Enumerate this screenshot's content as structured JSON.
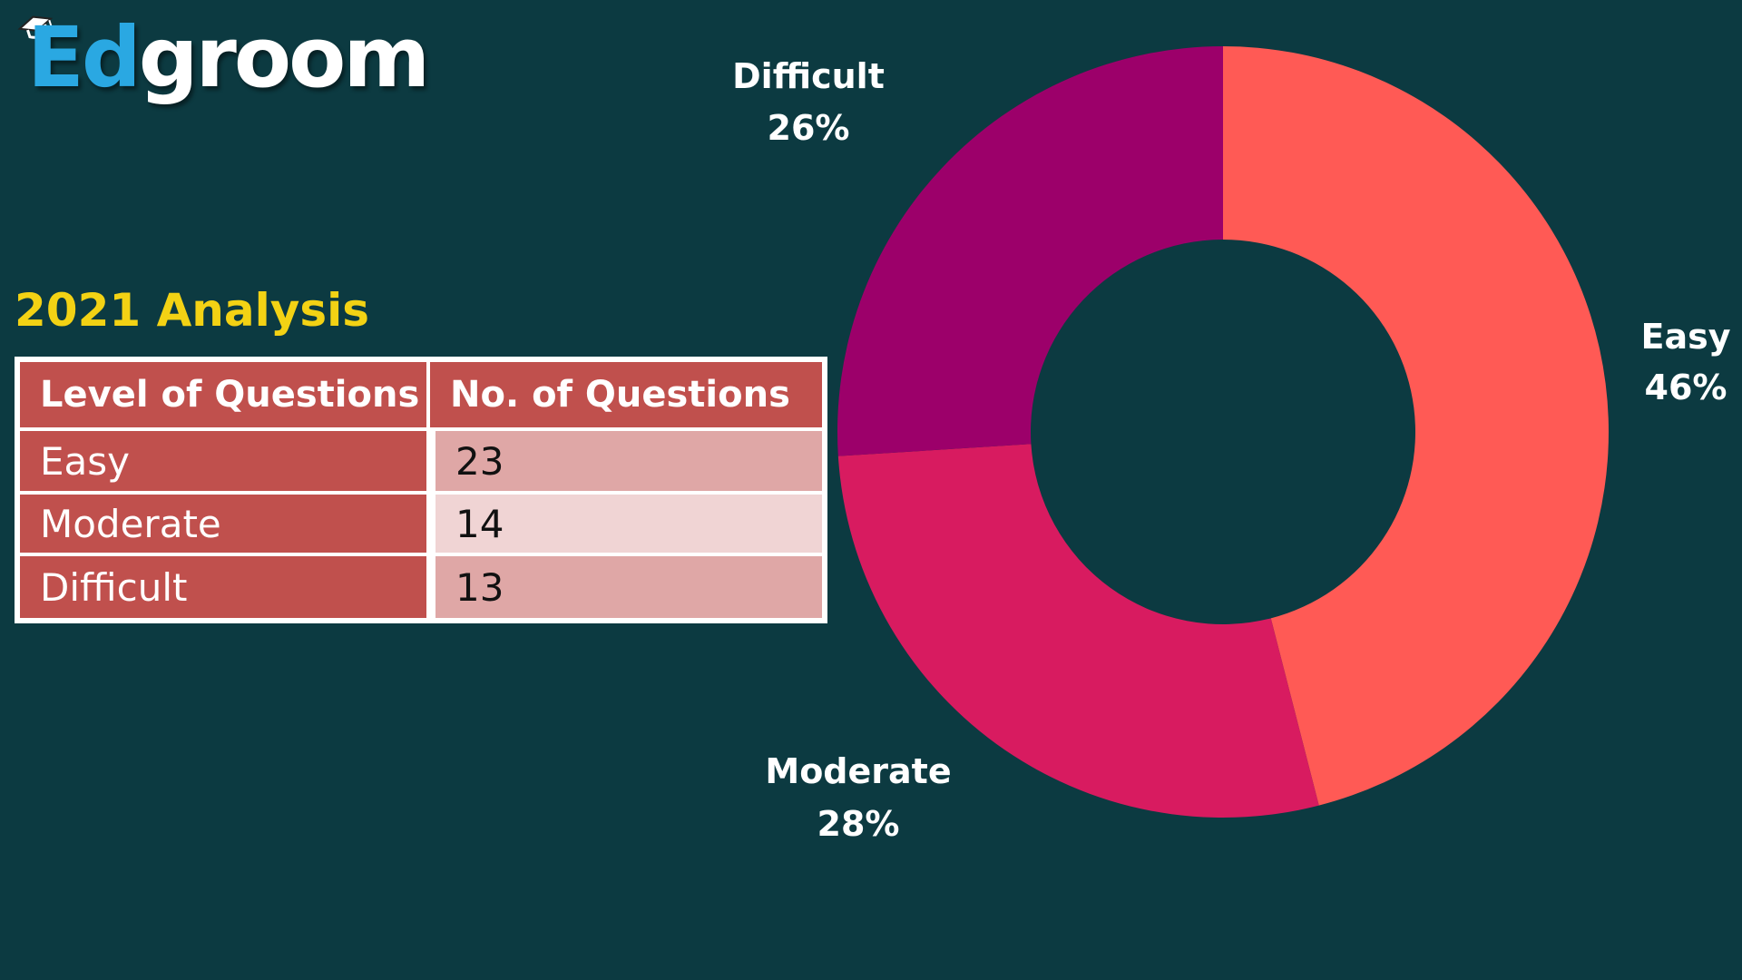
{
  "brand": {
    "part1": "Ed",
    "part2": "groom",
    "icon": "graduation-cap-icon"
  },
  "section_title": "2021 Analysis",
  "table": {
    "headers": [
      "Level of Questions",
      "No. of Questions"
    ],
    "rows": [
      {
        "level": "Easy",
        "count": "23"
      },
      {
        "level": "Moderate",
        "count": "14"
      },
      {
        "level": "Difficult",
        "count": "13"
      }
    ]
  },
  "chart_data": {
    "type": "pie",
    "donut": true,
    "title": "",
    "slices": [
      {
        "label": "Easy",
        "value": 46,
        "display": "46%",
        "color": "#ff5a55"
      },
      {
        "label": "Moderate",
        "value": 28,
        "display": "28%",
        "color": "#d81b60"
      },
      {
        "label": "Difficult",
        "value": 26,
        "display": "26%",
        "color": "#9c006a"
      }
    ],
    "start": "12 o'clock",
    "direction": "clockwise",
    "labels_outside": true
  },
  "colors": {
    "background": "#0c3a41",
    "title": "#f3d214",
    "header_fill": "#c0504d",
    "row_fill_a": "#dfa7a6",
    "row_fill_b": "#f0d4d4"
  }
}
